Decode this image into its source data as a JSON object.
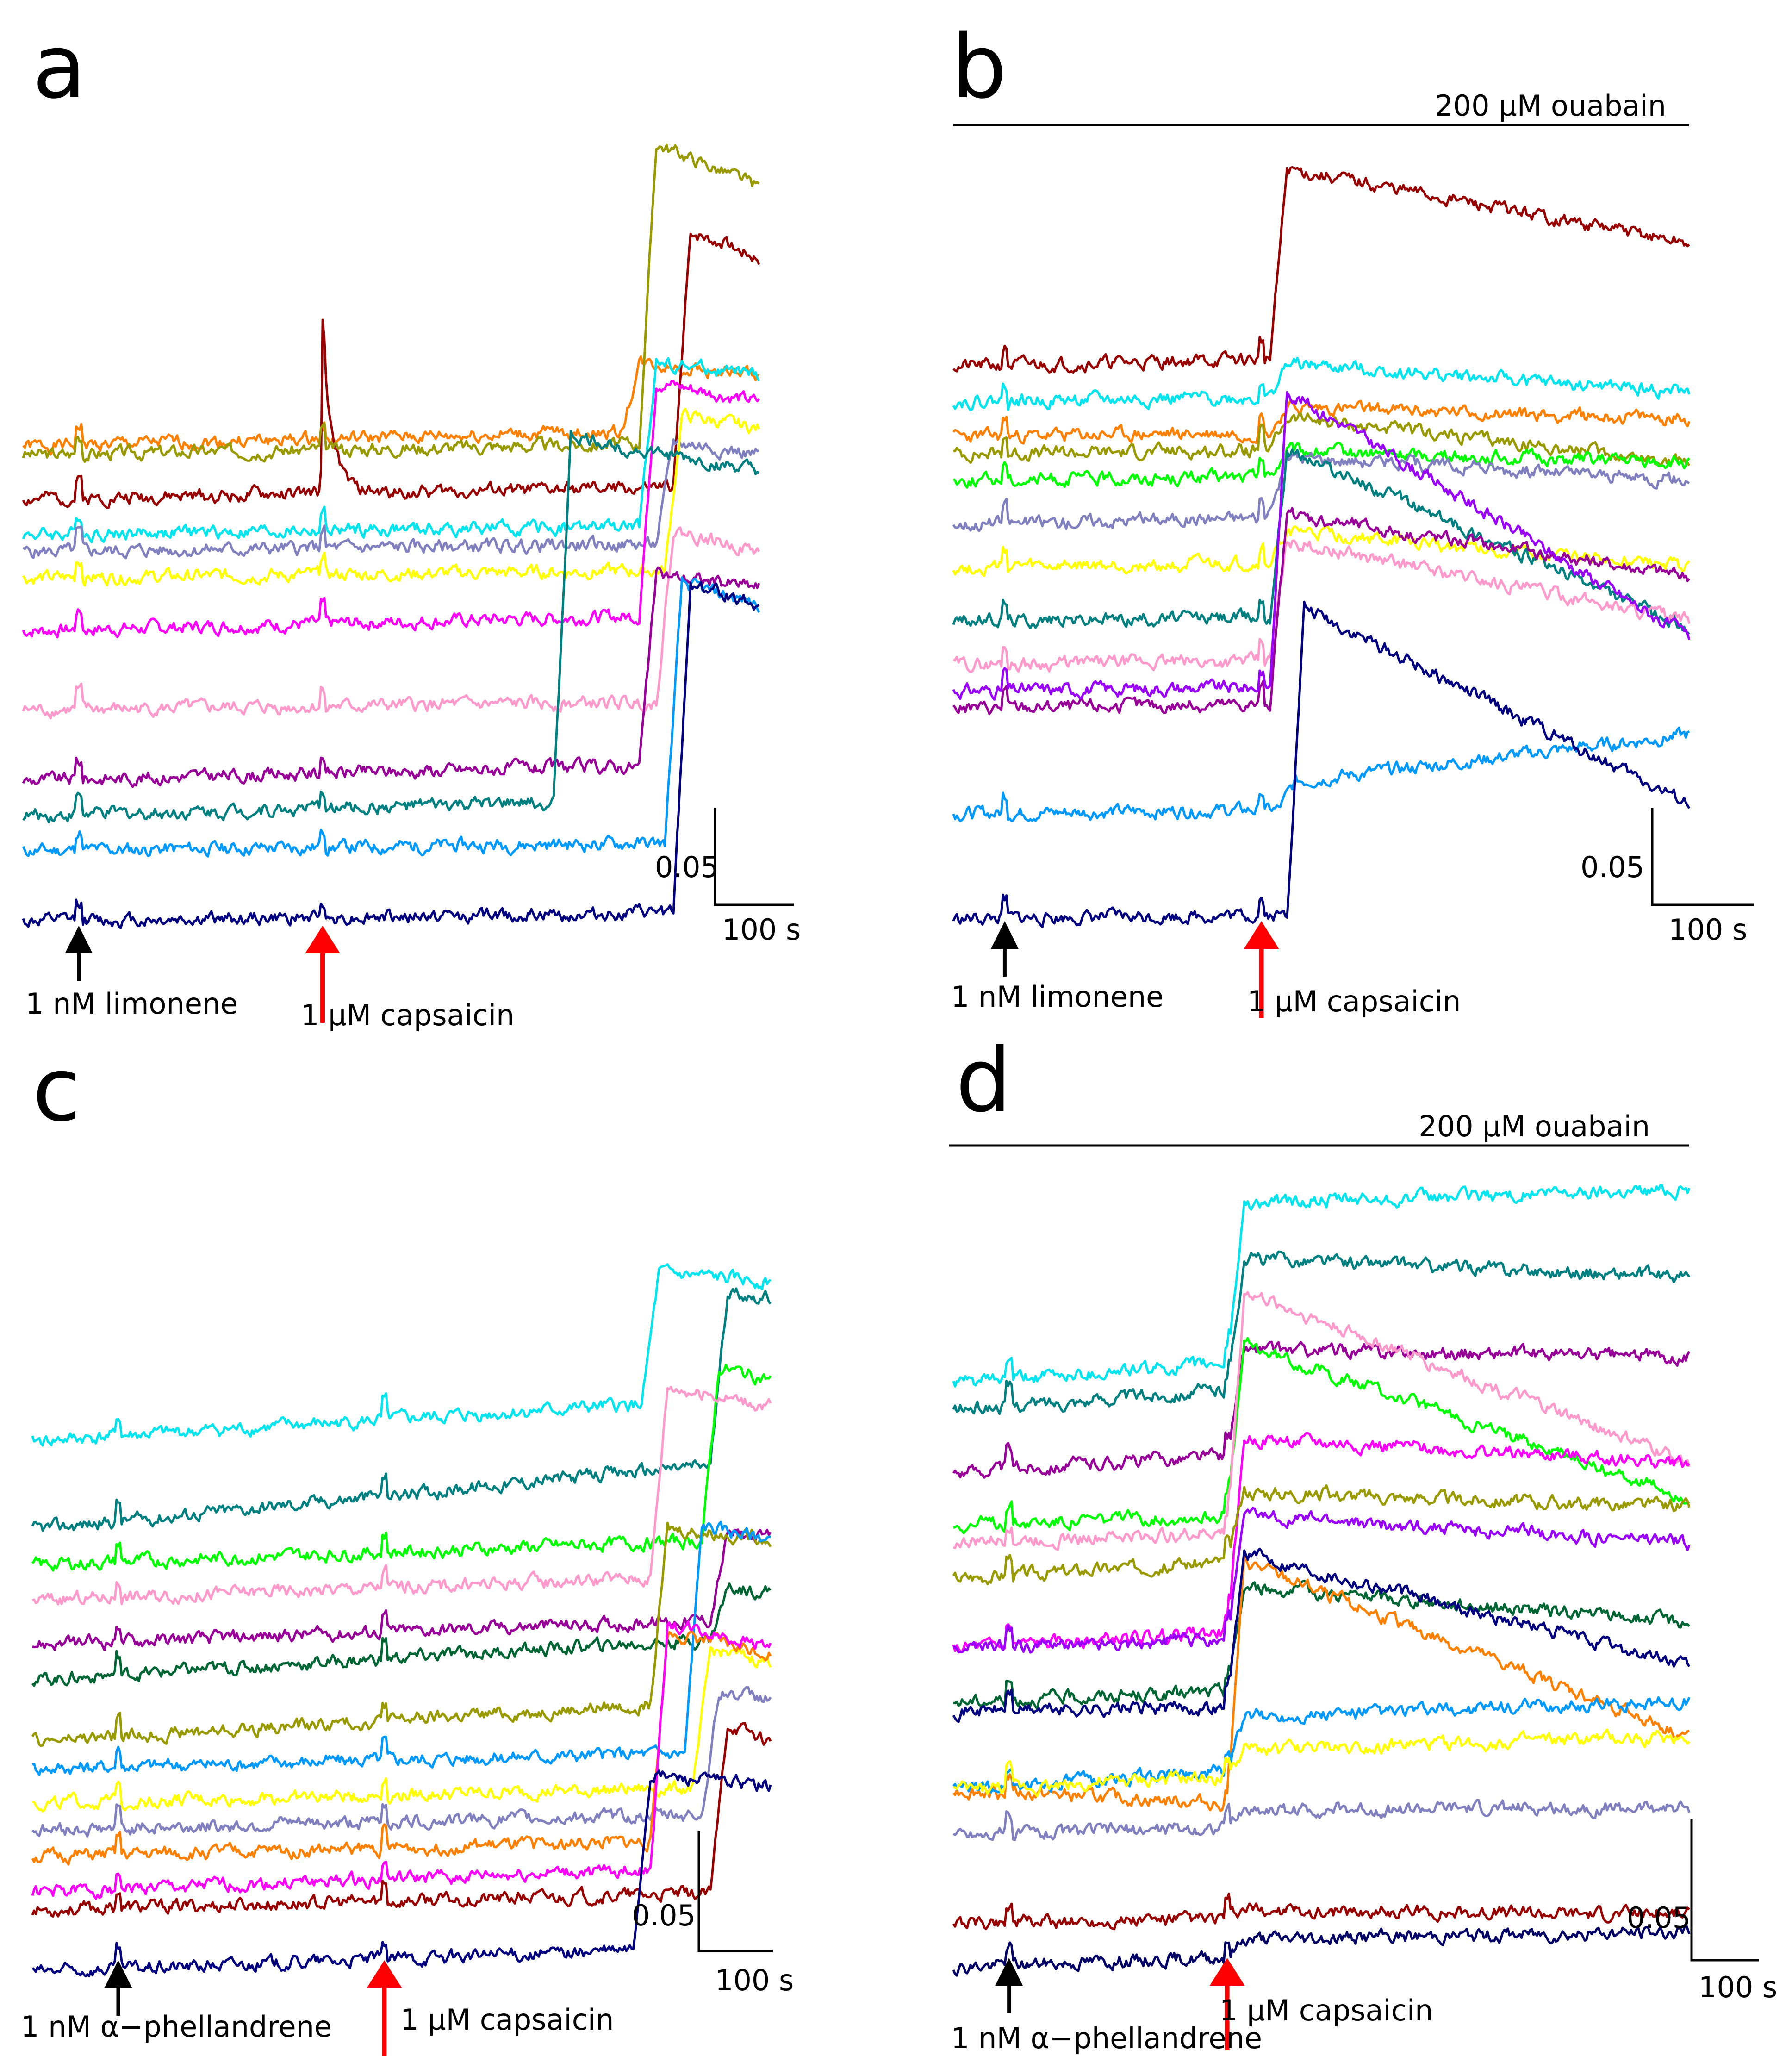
{
  "figure": {
    "panel_count": 4,
    "colors": {
      "black_arrow": "#000000",
      "red_arrow": "#ff0000"
    }
  },
  "chart_data": [
    {
      "panel": "a",
      "type": "line",
      "title": "",
      "time_range": [
        0,
        860
      ],
      "y_range": [
        0,
        0.9
      ],
      "stim1": {
        "label": "1 nM limonene",
        "time": 65
      },
      "stim2": {
        "label": "1 µM capsaicin",
        "time": 350
      },
      "bar_label": "",
      "scale": {
        "y_label": "0.05",
        "x_label": "100 s",
        "y_value": 0.05,
        "x_value": 100
      },
      "series": [
        {
          "name": "orange",
          "color": "#ff8000",
          "baseline": 0.54,
          "step_time": 700,
          "step_amp": 0.08,
          "decay": 0.02,
          "drift": 0.02,
          "seed": 1
        },
        {
          "name": "dark red",
          "color": "#990000",
          "baseline": 0.48,
          "step_time": 760,
          "step_amp": 0.3,
          "decay": 0.04,
          "drift": 0.015,
          "seed": 2,
          "spike_t": 350,
          "spike_amp": 0.18
        },
        {
          "name": "olive",
          "color": "#999900",
          "baseline": 0.53,
          "step_time": 720,
          "step_amp": 0.35,
          "decay": 0.06,
          "drift": 0.015,
          "seed": 3
        },
        {
          "name": "cyan",
          "color": "#00e5ee",
          "baseline": 0.44,
          "step_time": 720,
          "step_amp": 0.19,
          "decay": 0.02,
          "drift": 0.01,
          "seed": 4
        },
        {
          "name": "slate",
          "color": "#8080c0",
          "baseline": 0.42,
          "step_time": 740,
          "step_amp": 0.12,
          "decay": 0.02,
          "drift": 0.01,
          "seed": 5
        },
        {
          "name": "yellow",
          "color": "#ffff00",
          "baseline": 0.39,
          "step_time": 750,
          "step_amp": 0.18,
          "decay": 0.02,
          "drift": 0.01,
          "seed": 6
        },
        {
          "name": "magenta",
          "color": "#ff00ff",
          "baseline": 0.33,
          "step_time": 720,
          "step_amp": 0.27,
          "decay": 0.03,
          "drift": 0.02,
          "seed": 7
        },
        {
          "name": "pink",
          "color": "#ff99cc",
          "baseline": 0.24,
          "step_time": 740,
          "step_amp": 0.2,
          "decay": 0.03,
          "drift": 0.01,
          "seed": 8
        },
        {
          "name": "purple",
          "color": "#990099",
          "baseline": 0.16,
          "step_time": 720,
          "step_amp": 0.22,
          "decay": 0.02,
          "drift": 0.02,
          "seed": 9
        },
        {
          "name": "teal",
          "color": "#008080",
          "baseline": 0.12,
          "step_time": 620,
          "step_amp": 0.42,
          "decay": 0.05,
          "drift": 0.02,
          "seed": 10
        },
        {
          "name": "blue",
          "color": "#0099ff",
          "baseline": 0.08,
          "step_time": 750,
          "step_amp": 0.3,
          "decay": 0.03,
          "drift": 0.01,
          "seed": 11
        },
        {
          "name": "navy",
          "color": "#000080",
          "baseline": 0.0,
          "step_time": 760,
          "step_amp": 0.38,
          "decay": 0.03,
          "drift": 0.01,
          "seed": 12
        }
      ]
    },
    {
      "panel": "b",
      "type": "line",
      "title": "",
      "time_range": [
        0,
        860
      ],
      "y_range": [
        0,
        0.9
      ],
      "stim1": {
        "label": "1 nM limonene",
        "time": 60
      },
      "stim2": {
        "label": "1 µM capsaicin",
        "time": 360
      },
      "bar_label": "200 µM ouabain",
      "scale": {
        "y_label": "0.05",
        "x_label": "100 s",
        "y_value": 0.05,
        "x_value": 100
      },
      "series": [
        {
          "name": "dark red",
          "color": "#990000",
          "baseline": 0.63,
          "step_time": 370,
          "step_amp": 0.22,
          "decay": 0.1,
          "drift": 0.02,
          "seed": 21
        },
        {
          "name": "cyan",
          "color": "#00e5ee",
          "baseline": 0.59,
          "step_time": 370,
          "step_amp": 0.04,
          "decay": 0.04,
          "drift": 0.01,
          "seed": 22
        },
        {
          "name": "orange",
          "color": "#ff8000",
          "baseline": 0.55,
          "step_time": 370,
          "step_amp": 0.03,
          "decay": 0.02,
          "drift": 0.01,
          "seed": 23
        },
        {
          "name": "olive",
          "color": "#999900",
          "baseline": 0.53,
          "step_time": 370,
          "step_amp": 0.04,
          "decay": 0.06,
          "drift": 0.01,
          "seed": 24
        },
        {
          "name": "green",
          "color": "#00ff00",
          "baseline": 0.5,
          "step_time": 370,
          "step_amp": 0.03,
          "decay": 0.02,
          "drift": 0.01,
          "seed": 25
        },
        {
          "name": "slate",
          "color": "#8080c0",
          "baseline": 0.45,
          "step_time": 370,
          "step_amp": 0.07,
          "decay": 0.04,
          "drift": 0.02,
          "seed": 26
        },
        {
          "name": "yellow",
          "color": "#ffff00",
          "baseline": 0.4,
          "step_time": 370,
          "step_amp": 0.04,
          "decay": 0.05,
          "drift": 0.01,
          "seed": 27
        },
        {
          "name": "teal",
          "color": "#008080",
          "baseline": 0.34,
          "step_time": 370,
          "step_amp": 0.2,
          "decay": 0.22,
          "drift": 0.01,
          "seed": 28
        },
        {
          "name": "pink",
          "color": "#ff99cc",
          "baseline": 0.29,
          "step_time": 370,
          "step_amp": 0.14,
          "decay": 0.1,
          "drift": 0.01,
          "seed": 29
        },
        {
          "name": "purple",
          "color": "#990099",
          "baseline": 0.24,
          "step_time": 370,
          "step_amp": 0.22,
          "decay": 0.08,
          "drift": 0.01,
          "seed": 30
        },
        {
          "name": "violet",
          "color": "#9900ff",
          "baseline": 0.26,
          "step_time": 370,
          "step_amp": 0.35,
          "decay": 0.3,
          "drift": 0.01,
          "seed": 31
        },
        {
          "name": "blue",
          "color": "#0099ff",
          "baseline": 0.12,
          "step_time": 380,
          "step_amp": 0.03,
          "decay": -0.05,
          "drift": 0.01,
          "seed": 32
        },
        {
          "name": "navy",
          "color": "#000080",
          "baseline": 0.0,
          "step_time": 390,
          "step_amp": 0.36,
          "decay": 0.24,
          "drift": 0.01,
          "seed": 33
        }
      ]
    },
    {
      "panel": "c",
      "type": "line",
      "title": "",
      "time_range": [
        0,
        860
      ],
      "y_range": [
        0,
        0.9
      ],
      "stim1": {
        "label": "1 nM α−phellandrene",
        "time": 100
      },
      "stim2": {
        "label": "1 µM capsaicin",
        "time": 410
      },
      "bar_label": "",
      "scale": {
        "y_label": "0.05",
        "x_label": "100 s",
        "y_value": 0.05,
        "x_value": 100
      },
      "series": [
        {
          "name": "cyan",
          "color": "#00e5ee",
          "baseline": 0.6,
          "step_time": 710,
          "step_amp": 0.15,
          "decay": 0.02,
          "drift": 0.05,
          "seed": 41
        },
        {
          "name": "teal",
          "color": "#008080",
          "baseline": 0.5,
          "step_time": 790,
          "step_amp": 0.2,
          "decay": 0.02,
          "drift": 0.08,
          "seed": 42
        },
        {
          "name": "green",
          "color": "#00ff00",
          "baseline": 0.46,
          "step_time": 780,
          "step_amp": 0.2,
          "decay": 0.02,
          "drift": 0.03,
          "seed": 43
        },
        {
          "name": "pink",
          "color": "#ff99cc",
          "baseline": 0.42,
          "step_time": 720,
          "step_amp": 0.22,
          "decay": 0.03,
          "drift": 0.03,
          "seed": 44
        },
        {
          "name": "purple",
          "color": "#990099",
          "baseline": 0.37,
          "step_time": 790,
          "step_amp": 0.1,
          "decay": 0.01,
          "drift": 0.03,
          "seed": 45
        },
        {
          "name": "dark green",
          "color": "#006633",
          "baseline": 0.33,
          "step_time": 790,
          "step_amp": 0.06,
          "decay": 0.01,
          "drift": 0.05,
          "seed": 46
        },
        {
          "name": "olive",
          "color": "#999900",
          "baseline": 0.26,
          "step_time": 720,
          "step_amp": 0.2,
          "decay": 0.02,
          "drift": 0.05,
          "seed": 47
        },
        {
          "name": "blue",
          "color": "#0099ff",
          "baseline": 0.23,
          "step_time": 760,
          "step_amp": 0.26,
          "decay": 0.02,
          "drift": 0.02,
          "seed": 48
        },
        {
          "name": "yellow",
          "color": "#ffff00",
          "baseline": 0.19,
          "step_time": 770,
          "step_amp": 0.16,
          "decay": 0.02,
          "drift": 0.02,
          "seed": 49
        },
        {
          "name": "slate",
          "color": "#8080c0",
          "baseline": 0.16,
          "step_time": 780,
          "step_amp": 0.14,
          "decay": 0.01,
          "drift": 0.02,
          "seed": 50
        },
        {
          "name": "orange",
          "color": "#ff8000",
          "baseline": 0.13,
          "step_time": 720,
          "step_amp": 0.24,
          "decay": 0.03,
          "drift": 0.02,
          "seed": 51
        },
        {
          "name": "magenta",
          "color": "#ff00ff",
          "baseline": 0.09,
          "step_time": 720,
          "step_amp": 0.28,
          "decay": 0.03,
          "drift": 0.03,
          "seed": 52
        },
        {
          "name": "dark red",
          "color": "#990000",
          "baseline": 0.07,
          "step_time": 790,
          "step_amp": 0.2,
          "decay": 0.03,
          "drift": 0.02,
          "seed": 53
        },
        {
          "name": "navy",
          "color": "#000080",
          "baseline": 0.0,
          "step_time": 700,
          "step_amp": 0.2,
          "decay": 0.02,
          "drift": 0.03,
          "seed": 54
        }
      ]
    },
    {
      "panel": "d",
      "type": "line",
      "title": "",
      "time_range": [
        0,
        860
      ],
      "y_range": [
        0,
        0.9
      ],
      "stim1": {
        "label": "1 nM α−phellandrene",
        "time": 65
      },
      "stim2": {
        "label": "1 µM capsaicin",
        "time": 320
      },
      "bar_label": "200 µM ouabain",
      "scale": {
        "y_label": "0.05",
        "x_label": "100 s",
        "y_value": 0.05,
        "x_value": 100
      },
      "series": [
        {
          "name": "cyan",
          "color": "#00e5ee",
          "baseline": 0.66,
          "step_time": 320,
          "step_amp": 0.18,
          "decay": 0.02,
          "drift": 0.06,
          "seed": 61
        },
        {
          "name": "teal",
          "color": "#008080",
          "baseline": 0.63,
          "step_time": 320,
          "step_amp": 0.15,
          "decay": 0.06,
          "drift": 0.06,
          "seed": 62
        },
        {
          "name": "purple",
          "color": "#990099",
          "baseline": 0.56,
          "step_time": 320,
          "step_amp": 0.12,
          "decay": 0.04,
          "drift": 0.05,
          "seed": 63
        },
        {
          "name": "green",
          "color": "#00ff00",
          "baseline": 0.5,
          "step_time": 320,
          "step_amp": 0.2,
          "decay": 0.2,
          "drift": 0.03,
          "seed": 64
        },
        {
          "name": "pink",
          "color": "#ff99cc",
          "baseline": 0.48,
          "step_time": 320,
          "step_amp": 0.28,
          "decay": 0.22,
          "drift": 0.03,
          "seed": 65
        },
        {
          "name": "magenta",
          "color": "#ff00ff",
          "baseline": 0.36,
          "step_time": 320,
          "step_amp": 0.22,
          "decay": 0.06,
          "drift": 0.05,
          "seed": 66
        },
        {
          "name": "olive",
          "color": "#999900",
          "baseline": 0.44,
          "step_time": 320,
          "step_amp": 0.08,
          "decay": 0.05,
          "drift": 0.05,
          "seed": 67
        },
        {
          "name": "violet",
          "color": "#9900ff",
          "baseline": 0.36,
          "step_time": 320,
          "step_amp": 0.14,
          "decay": 0.05,
          "drift": 0.03,
          "seed": 68
        },
        {
          "name": "dark green",
          "color": "#006633",
          "baseline": 0.3,
          "step_time": 320,
          "step_amp": 0.12,
          "decay": 0.06,
          "drift": 0.03,
          "seed": 69
        },
        {
          "name": "orange",
          "color": "#ff8000",
          "baseline": 0.2,
          "step_time": 320,
          "step_amp": 0.28,
          "decay": 0.18,
          "drift": -0.04,
          "seed": 70
        },
        {
          "name": "navy",
          "color": "#000080",
          "baseline": 0.29,
          "step_time": 320,
          "step_amp": 0.18,
          "decay": 0.14,
          "drift": 0.01,
          "seed": 71
        },
        {
          "name": "blue",
          "color": "#0099ff",
          "baseline": 0.2,
          "step_time": 320,
          "step_amp": 0.06,
          "decay": 0.02,
          "drift": 0.06,
          "seed": 72
        },
        {
          "name": "yellow",
          "color": "#ffff00",
          "baseline": 0.2,
          "step_time": 320,
          "step_amp": 0.03,
          "decay": 0.01,
          "drift": 0.04,
          "seed": 73
        },
        {
          "name": "slate",
          "color": "#8080c0",
          "baseline": 0.15,
          "step_time": 320,
          "step_amp": 0.02,
          "decay": 0.01,
          "drift": 0.02,
          "seed": 74
        },
        {
          "name": "dark red",
          "color": "#990000",
          "baseline": 0.05,
          "step_time": 320,
          "step_amp": 0.01,
          "decay": 0.01,
          "drift": 0.01,
          "seed": 75
        },
        {
          "name": "black-blue",
          "color": "#000066",
          "baseline": 0.0,
          "step_time": 320,
          "step_amp": 0.02,
          "decay": 0.01,
          "drift": 0.03,
          "seed": 76
        }
      ]
    }
  ]
}
